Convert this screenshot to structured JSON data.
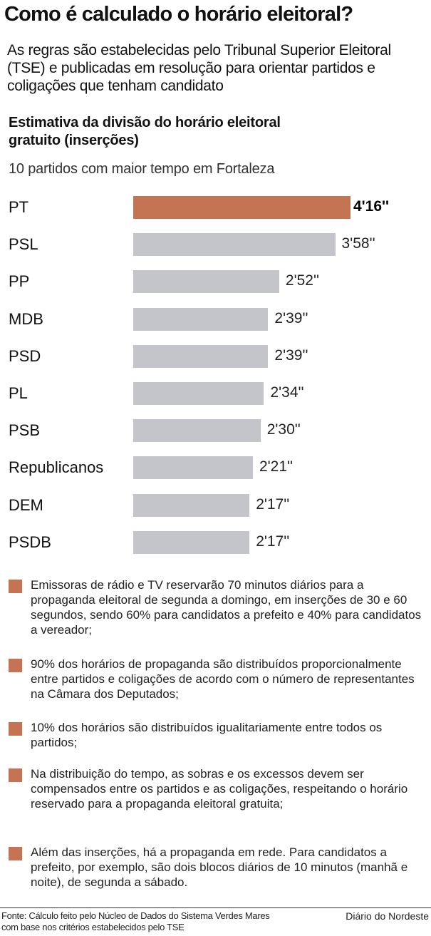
{
  "header": {
    "title": "Como é calculado o horário eleitoral?",
    "subtitle": "As regras são estabelecidas pelo Tribunal Superior Eleitoral (TSE) e publicadas em resolução para orientar partidos e coligações que tenham candidato"
  },
  "chart_data": {
    "type": "bar",
    "orientation": "horizontal",
    "title": "Estimativa da divisão do horário eleitoral gratuito (inserções)",
    "subtitle": "10 partidos com maior tempo em Fortaleza",
    "categories": [
      "PT",
      "PSL",
      "PP",
      "MDB",
      "PSD",
      "PL",
      "PSB",
      "Republicanos",
      "DEM",
      "PSDB"
    ],
    "values_seconds": [
      256,
      238,
      172,
      159,
      159,
      154,
      150,
      141,
      137,
      137
    ],
    "value_labels": [
      "4'16''",
      "3'58''",
      "2'52''",
      "2'39''",
      "2'39''",
      "2'34''",
      "2'30''",
      "2'21''",
      "2'17''",
      "2'17''"
    ],
    "highlight_index": 0,
    "colors": {
      "highlight": "#c47453",
      "default": "#c4c5ca"
    }
  },
  "bullets": [
    "Emissoras de rádio e TV reservarão 70 minutos diários para a propaganda eleitoral de segunda a domingo, em inserções de 30 e 60 segundos, sendo 60% para candidatos a prefeito e 40% para candidatos a vereador;",
    "90% dos horários de propaganda são distribuídos proporcionalmente entre partidos e coligações de acordo com o número de representantes na Câmara dos Deputados;",
    "10% dos horários são distribuídos igualitariamente entre todos os partidos;",
    "Na distribuição do tempo, as sobras e os excessos devem ser compensados entre os partidos e as coligações, respeitando o horário reservado para a propaganda eleitoral gratuita;",
    "Além das inserções, há a propaganda em rede. Para candidatos a prefeito, por exemplo, são dois blocos diários de 10 minutos (manhã e noite), de segunda a sábado."
  ],
  "footer": {
    "source": "Fonte: Cálculo feito pelo Núcleo de Dados do Sistema Verdes Mares com base nos critérios estabelecidos pelo TSE",
    "brand": "Diário do Nordeste"
  }
}
